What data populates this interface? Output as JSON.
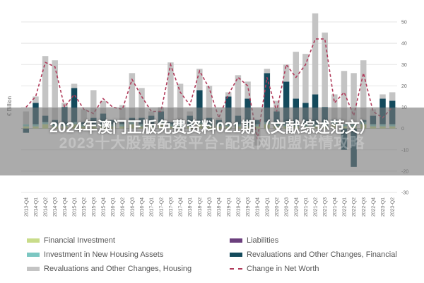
{
  "overlay": {
    "title": "2024年澳门正版免费资料021期（文献综述范文）",
    "ghost_text": "2023十大股票配资平台-配资网加盟详情攻略"
  },
  "chart_data": {
    "type": "bar",
    "ylabel": "€ Billion",
    "ylim": [
      -30,
      50
    ],
    "yticks": [
      -30,
      -20,
      -10,
      0,
      10,
      20,
      30,
      40,
      50
    ],
    "categories": [
      "2013-Q4",
      "2014-Q1",
      "2014-Q2",
      "2014-Q3",
      "2014-Q4",
      "2015-Q1",
      "2015-Q2",
      "2015-Q3",
      "2015-Q4",
      "2016-Q1",
      "2016-Q2",
      "2016-Q3",
      "2016-Q4",
      "2017-Q1",
      "2017-Q2",
      "2017-Q3",
      "2017-Q4",
      "2018-Q1",
      "2018-Q2",
      "2018-Q3",
      "2018-Q4",
      "2019-Q1",
      "2019-Q2",
      "2019-Q3",
      "2019-Q4",
      "2020-Q1",
      "2020-Q2",
      "2020-Q3",
      "2020-Q4",
      "2021-Q1",
      "2021-Q2",
      "2021-Q3",
      "2021-Q4",
      "2022-Q1",
      "2022-Q2",
      "2022-Q3",
      "2022-Q4",
      "2023-Q1",
      "2023-Q2"
    ],
    "series": [
      {
        "name": "Financial Investment",
        "color": "#c9dc8a",
        "values": [
          1,
          1,
          2,
          1,
          1,
          2,
          1,
          1,
          1,
          1,
          1,
          2,
          1,
          1,
          2,
          1,
          1,
          1,
          2,
          1,
          1,
          1,
          1,
          1,
          1,
          2,
          1,
          1,
          1,
          1,
          1,
          1,
          2,
          1,
          1,
          2,
          1,
          1,
          1
        ]
      },
      {
        "name": "Liabilities",
        "color": "#6b3f7d",
        "values": [
          0,
          0,
          0,
          0,
          0,
          0,
          0,
          0,
          0,
          0,
          0,
          0,
          0,
          0,
          0,
          0,
          0,
          0,
          0,
          0,
          0,
          0,
          0,
          0,
          0,
          0,
          0,
          0,
          0,
          0,
          0,
          0,
          0,
          0,
          0,
          0,
          0,
          0,
          0
        ]
      },
      {
        "name": "Investment in New Housing Assets",
        "color": "#7cc7c2",
        "values": [
          1,
          1,
          1,
          1,
          1,
          1,
          1,
          1,
          1,
          1,
          1,
          1,
          1,
          1,
          1,
          1,
          1,
          1,
          1,
          1,
          1,
          1,
          1,
          1,
          1,
          1,
          1,
          1,
          1,
          1,
          1,
          1,
          1,
          1,
          1,
          1,
          1,
          1,
          1
        ]
      },
      {
        "name": "Revaluations and Other Changes, Financial",
        "color": "#144a5c",
        "values": [
          -2,
          10,
          3,
          2,
          8,
          16,
          1,
          3,
          5,
          2,
          1,
          2,
          3,
          4,
          5,
          1,
          2,
          4,
          15,
          3,
          2,
          13,
          4,
          12,
          2,
          23,
          6,
          20,
          12,
          10,
          14,
          8,
          1,
          -10,
          -18,
          1,
          4,
          12,
          11
        ]
      },
      {
        "name": "Revaluations and Other Changes, Housing",
        "color": "#c4c4c4",
        "values": [
          6,
          3,
          28,
          28,
          2,
          2,
          6,
          13,
          6,
          0,
          8,
          21,
          14,
          2,
          2,
          28,
          17,
          2,
          10,
          15,
          1,
          2,
          19,
          8,
          -8,
          2,
          5,
          8,
          22,
          23,
          38,
          35,
          12,
          25,
          24,
          28,
          3,
          2,
          4
        ]
      },
      {
        "name": "Change in Net Worth",
        "color": "#b03a5a",
        "dashed": true,
        "values": [
          10,
          15,
          31,
          29,
          10,
          16,
          9,
          7,
          14,
          10,
          9,
          23,
          15,
          8,
          8,
          30,
          17,
          11,
          27,
          19,
          5,
          16,
          24,
          20,
          -5,
          24,
          8,
          30,
          24,
          30,
          42,
          42,
          12,
          17,
          6,
          26,
          8,
          5,
          10
        ]
      }
    ],
    "legend_position": "bottom",
    "grid": true
  }
}
